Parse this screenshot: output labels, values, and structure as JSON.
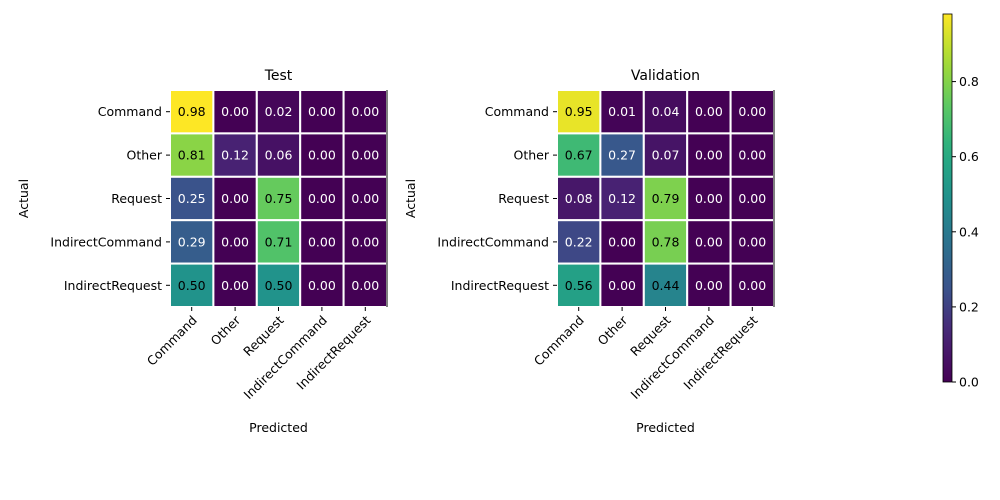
{
  "chart_data": [
    {
      "type": "heatmap",
      "title": "Test",
      "xlabel": "Predicted",
      "ylabel": "Actual",
      "x_categories": [
        "Command",
        "Other",
        "Request",
        "IndirectCommand",
        "IndirectRequest"
      ],
      "y_categories": [
        "Command",
        "Other",
        "Request",
        "IndirectCommand",
        "IndirectRequest"
      ],
      "values": [
        [
          0.98,
          0.0,
          0.02,
          0.0,
          0.0
        ],
        [
          0.81,
          0.12,
          0.06,
          0.0,
          0.0
        ],
        [
          0.25,
          0.0,
          0.75,
          0.0,
          0.0
        ],
        [
          0.29,
          0.0,
          0.71,
          0.0,
          0.0
        ],
        [
          0.5,
          0.0,
          0.5,
          0.0,
          0.0
        ]
      ]
    },
    {
      "type": "heatmap",
      "title": "Validation",
      "xlabel": "Predicted",
      "ylabel": "Actual",
      "x_categories": [
        "Command",
        "Other",
        "Request",
        "IndirectCommand",
        "IndirectRequest"
      ],
      "y_categories": [
        "Command",
        "Other",
        "Request",
        "IndirectCommand",
        "IndirectRequest"
      ],
      "values": [
        [
          0.95,
          0.01,
          0.04,
          0.0,
          0.0
        ],
        [
          0.67,
          0.27,
          0.07,
          0.0,
          0.0
        ],
        [
          0.08,
          0.12,
          0.79,
          0.0,
          0.0
        ],
        [
          0.22,
          0.0,
          0.78,
          0.0,
          0.0
        ],
        [
          0.56,
          0.0,
          0.44,
          0.0,
          0.0
        ]
      ]
    }
  ],
  "colorbar": {
    "colormap": "viridis",
    "range": [
      0,
      0.98
    ],
    "ticks": [
      0.0,
      0.2,
      0.4,
      0.6,
      0.8
    ],
    "tick_labels": [
      "0.0",
      "0.2",
      "0.4",
      "0.6",
      "0.8"
    ]
  }
}
